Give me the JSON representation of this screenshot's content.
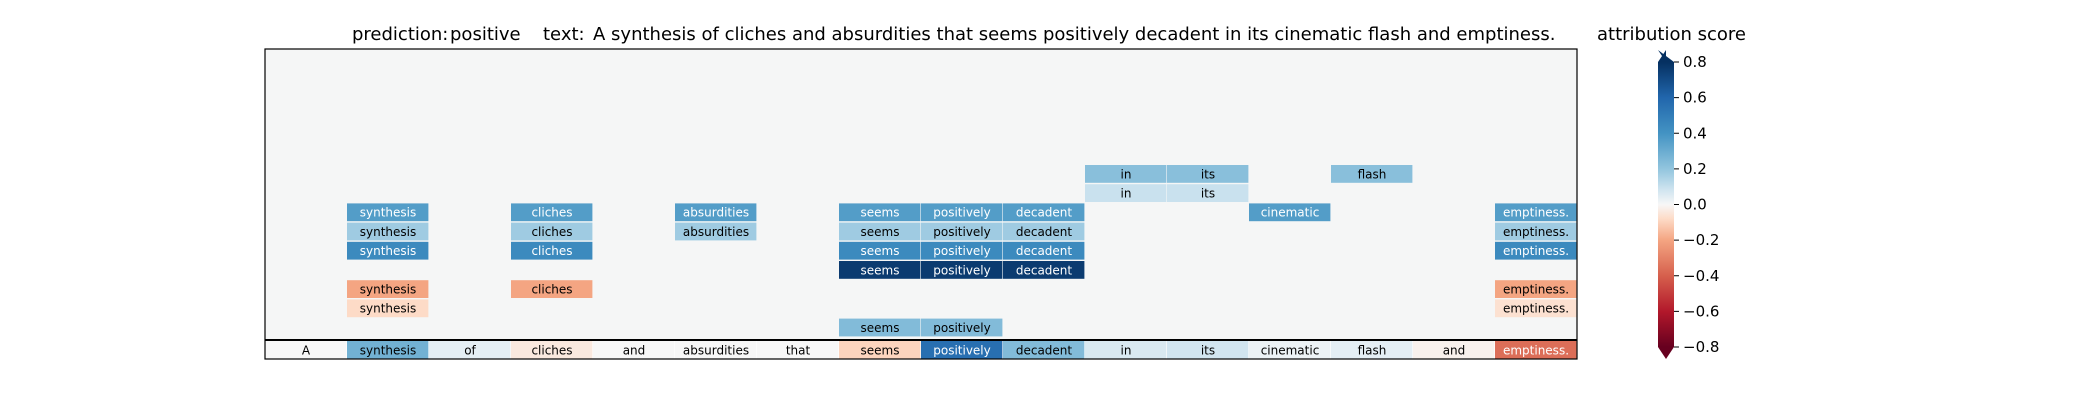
{
  "header": {
    "prediction_label": "prediction:",
    "prediction_value": "positive",
    "text_label": "text:",
    "text_value": "A synthesis of cliches and absurdities that seems positively decadent in its cinematic flash and emptiness."
  },
  "colorbar": {
    "title": "attribution score",
    "ticks": [
      "0.8",
      "0.6",
      "0.4",
      "0.2",
      "0.0",
      "−0.2",
      "−0.4",
      "−0.6",
      "−0.8"
    ],
    "range": [
      -0.8,
      0.8
    ],
    "extend": "both",
    "colormap": "RdBu"
  },
  "chart_data": {
    "type": "heatmap",
    "tokens": [
      "A",
      "synthesis",
      "of",
      "cliches",
      "and",
      "absurdities",
      "that",
      "seems",
      "positively",
      "decadent",
      "in",
      "its",
      "cinematic",
      "flash",
      "and",
      "emptiness."
    ],
    "token_row": [
      0.0,
      0.35,
      0.05,
      -0.05,
      0.0,
      0.0,
      0.0,
      -0.12,
      0.7,
      0.3,
      0.08,
      0.1,
      0.03,
      0.05,
      -0.02,
      -0.45
    ],
    "layers": [
      {
        "cells": [
          {
            "i": 10,
            "v": 0.28
          },
          {
            "i": 11,
            "v": 0.28
          },
          {
            "i": 13,
            "v": 0.28
          }
        ]
      },
      {
        "cells": [
          {
            "i": 10,
            "v": 0.12
          },
          {
            "i": 11,
            "v": 0.12
          }
        ]
      },
      {
        "cells": [
          {
            "i": 1,
            "v": 0.45
          },
          {
            "i": 3,
            "v": 0.45
          },
          {
            "i": 5,
            "v": 0.45
          },
          {
            "i": 7,
            "v": 0.45
          },
          {
            "i": 8,
            "v": 0.45
          },
          {
            "i": 9,
            "v": 0.45
          },
          {
            "i": 12,
            "v": 0.45
          },
          {
            "i": 15,
            "v": 0.45
          }
        ]
      },
      {
        "cells": [
          {
            "i": 1,
            "v": 0.22
          },
          {
            "i": 3,
            "v": 0.22
          },
          {
            "i": 5,
            "v": 0.22
          },
          {
            "i": 7,
            "v": 0.22
          },
          {
            "i": 8,
            "v": 0.22
          },
          {
            "i": 9,
            "v": 0.22
          },
          {
            "i": 15,
            "v": 0.22
          }
        ]
      },
      {
        "cells": [
          {
            "i": 1,
            "v": 0.55
          },
          {
            "i": 3,
            "v": 0.55
          },
          {
            "i": 7,
            "v": 0.55
          },
          {
            "i": 8,
            "v": 0.55
          },
          {
            "i": 9,
            "v": 0.55
          },
          {
            "i": 15,
            "v": 0.55
          }
        ]
      },
      {
        "cells": [
          {
            "i": 7,
            "v": 0.95
          },
          {
            "i": 8,
            "v": 0.95
          },
          {
            "i": 9,
            "v": 0.95
          }
        ]
      },
      {
        "cells": [
          {
            "i": 1,
            "v": -0.25
          },
          {
            "i": 3,
            "v": -0.25
          },
          {
            "i": 15,
            "v": -0.25
          }
        ]
      },
      {
        "cells": [
          {
            "i": 1,
            "v": -0.1
          },
          {
            "i": 15,
            "v": -0.08
          }
        ]
      },
      {
        "cells": [
          {
            "i": 7,
            "v": 0.3
          },
          {
            "i": 8,
            "v": 0.3
          }
        ]
      }
    ]
  }
}
